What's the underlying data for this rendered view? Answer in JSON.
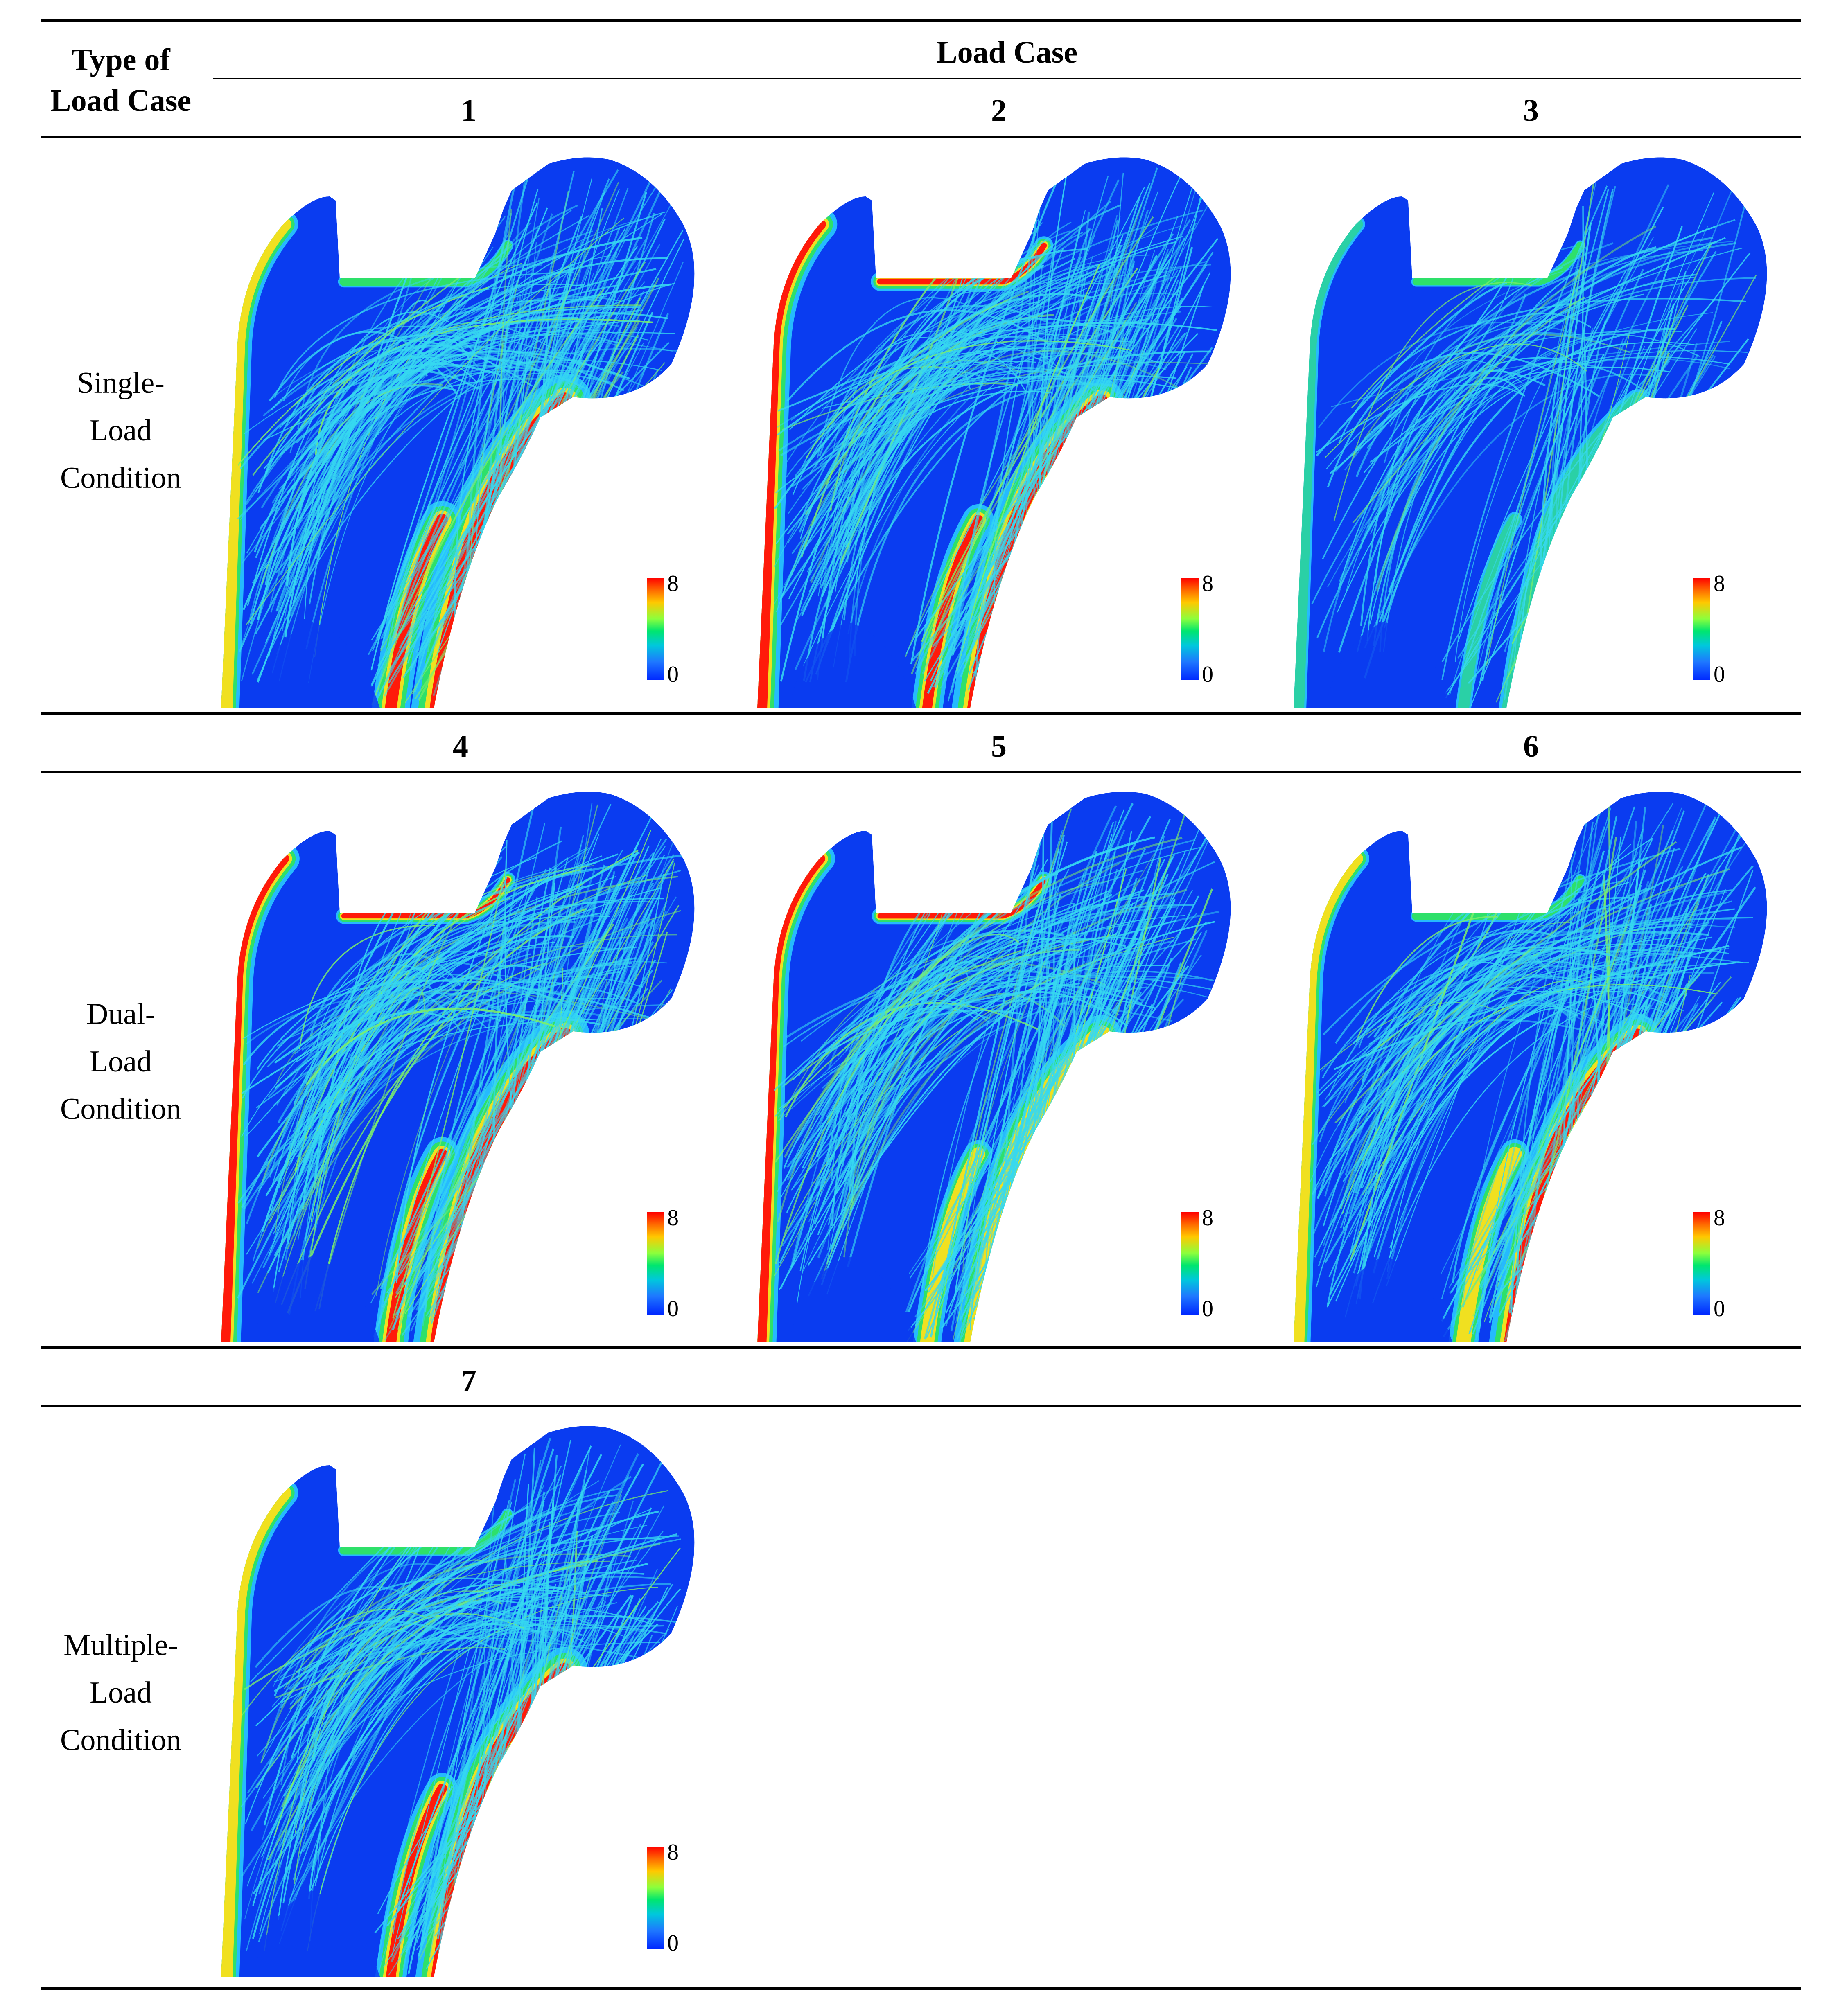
{
  "table": {
    "corner_header": [
      "Type of",
      "Load Case"
    ],
    "load_case_header": "Load Case",
    "rows": [
      {
        "label_lines": [
          "Single-",
          "Load",
          "Condition"
        ],
        "cases": [
          "1",
          "2",
          "3"
        ]
      },
      {
        "label_lines": [
          "Dual-",
          "Load",
          "Condition"
        ],
        "cases": [
          "4",
          "5",
          "6"
        ]
      },
      {
        "label_lines": [
          "Multiple-",
          "Load",
          "Condition"
        ],
        "cases": [
          "7"
        ]
      }
    ]
  },
  "colorbar": {
    "max_label": "8",
    "min_label": "0"
  },
  "colors": {
    "background_blue": "#0a3cf0",
    "trabecula_cyan": "#36d8f0",
    "cortex_green": "#2ee06a",
    "cortex_yellow": "#f0e020",
    "cortex_red": "#ff1a0a"
  },
  "panels": [
    {
      "case": "1",
      "lateral_intensity": 0.7,
      "medial_intensity": 1.0,
      "neck_intensity": 0.5,
      "trabecular_density": 0.8
    },
    {
      "case": "2",
      "lateral_intensity": 0.9,
      "medial_intensity": 0.8,
      "neck_intensity": 1.0,
      "trabecular_density": 0.9
    },
    {
      "case": "3",
      "lateral_intensity": 0.3,
      "medial_intensity": 0.3,
      "neck_intensity": 0.4,
      "trabecular_density": 0.45
    },
    {
      "case": "4",
      "lateral_intensity": 0.8,
      "medial_intensity": 0.9,
      "neck_intensity": 0.8,
      "trabecular_density": 0.85
    },
    {
      "case": "5",
      "lateral_intensity": 0.75,
      "medial_intensity": 0.7,
      "neck_intensity": 0.85,
      "trabecular_density": 0.85
    },
    {
      "case": "6",
      "lateral_intensity": 0.6,
      "medial_intensity": 0.75,
      "neck_intensity": 0.5,
      "trabecular_density": 0.8
    },
    {
      "case": "7",
      "lateral_intensity": 0.7,
      "medial_intensity": 0.8,
      "neck_intensity": 0.5,
      "trabecular_density": 0.8
    }
  ]
}
